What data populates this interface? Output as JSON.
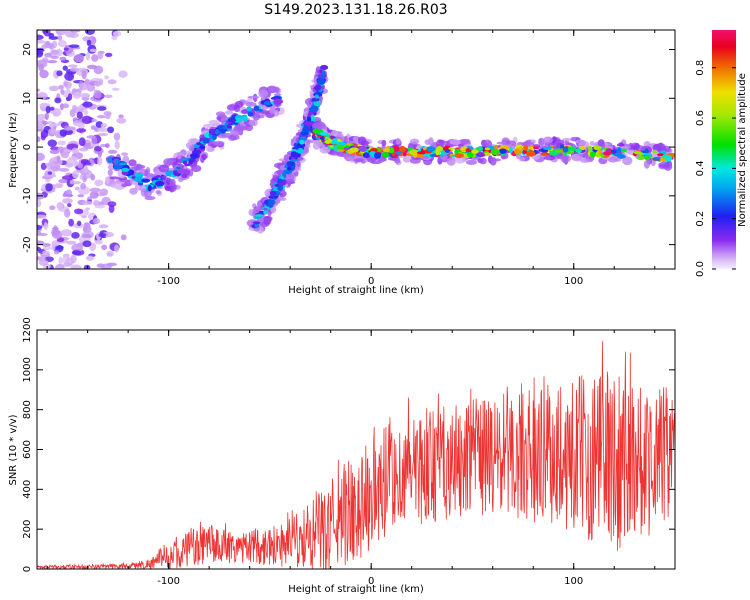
{
  "title": "S149.2023.131.18.26.R03",
  "colors": {
    "signal": "#ee3333",
    "axes": "#000000",
    "spectrum_scale": [
      "#f4f0fc",
      "#d9b8f6",
      "#a060f0",
      "#7a10ee",
      "#2020f0",
      "#00a0f0",
      "#00e8e0",
      "#00e000",
      "#f0e000",
      "#f07000",
      "#e80020",
      "#f01070"
    ]
  },
  "chart_data": [
    {
      "type": "heatmap",
      "name": "spectrogram",
      "xlabel": "Height of straight line (km)",
      "ylabel": "Frequency (Hz)",
      "xlim": [
        -165,
        150
      ],
      "ylim": [
        -25,
        24
      ],
      "x_ticks": [
        -100,
        0,
        100
      ],
      "y_ticks": [
        20,
        10,
        0,
        -10,
        -20
      ],
      "colorbar": {
        "label": "Normalized spectral amplitude",
        "range": [
          0,
          0.95
        ],
        "ticks": [
          0.0,
          0.2,
          0.4,
          0.6,
          0.8
        ]
      },
      "features": [
        {
          "shape": "scattered noise cloud",
          "x_range": [
            -165,
            -120
          ],
          "freq_range": [
            -25,
            24
          ],
          "amplitude": 0.1
        },
        {
          "shape": "curved band",
          "points": [
            [
              -130,
              -2
            ],
            [
              -110,
              -8
            ],
            [
              -95,
              -5
            ],
            [
              -80,
              2
            ],
            [
              -65,
              6
            ],
            [
              -45,
              10
            ]
          ],
          "amplitude": 0.3
        },
        {
          "shape": "curved band",
          "points": [
            [
              -58,
              -16
            ],
            [
              -48,
              -10
            ],
            [
              -40,
              -4
            ],
            [
              -33,
              2
            ],
            [
              -28,
              8
            ],
            [
              -24,
              16
            ]
          ],
          "amplitude": 0.3
        },
        {
          "shape": "horizontal band",
          "points": [
            [
              -28,
              3
            ],
            [
              -15,
              0
            ],
            [
              0,
              -1
            ],
            [
              50,
              -1
            ],
            [
              100,
              -0.5
            ],
            [
              148,
              -2
            ]
          ],
          "amplitude": 0.9
        }
      ]
    },
    {
      "type": "line",
      "name": "snr",
      "xlabel": "Height of straight line (km)",
      "ylabel": "SNR (10 * v/v)",
      "xlim": [
        -165,
        150
      ],
      "ylim": [
        0,
        1200
      ],
      "x_ticks": [
        -100,
        0,
        100
      ],
      "y_ticks": [
        0,
        200,
        400,
        600,
        800,
        1000,
        1200
      ],
      "envelope": {
        "x": [
          -165,
          -140,
          -120,
          -110,
          -100,
          -90,
          -80,
          -60,
          -40,
          -25,
          -15,
          -5,
          5,
          15,
          30,
          60,
          90,
          120,
          150
        ],
        "mean": [
          10,
          10,
          15,
          25,
          60,
          100,
          120,
          110,
          130,
          160,
          260,
          330,
          400,
          470,
          520,
          560,
          580,
          560,
          560
        ],
        "peak": [
          20,
          25,
          35,
          60,
          140,
          220,
          250,
          220,
          300,
          450,
          600,
          720,
          800,
          850,
          900,
          980,
          1050,
          1200,
          1000
        ]
      }
    }
  ]
}
